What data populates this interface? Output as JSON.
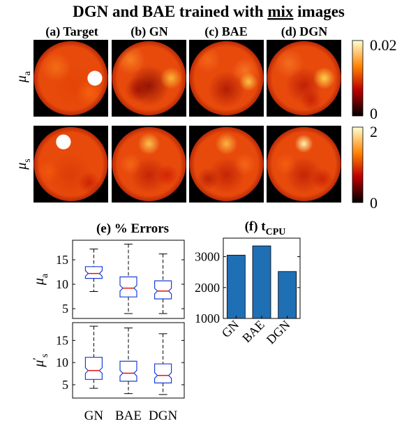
{
  "figure": {
    "title_prefix": "DGN and BAE trained with ",
    "title_underlined": "mix",
    "title_suffix": " images"
  },
  "panels": {
    "columns": [
      "(a) Target",
      "(b) GN",
      "(c) BAE",
      "(d) DGN"
    ],
    "rows": [
      {
        "label_main": "μ",
        "label_sub": "a"
      },
      {
        "label_main": "μ",
        "label_sub": "s"
      }
    ],
    "colorbars": [
      {
        "max_label": "0.02",
        "min_label": "0"
      },
      {
        "max_label": "2",
        "min_label": "0"
      }
    ]
  },
  "chart_data": [
    {
      "type": "box",
      "title": "(e) % Errors",
      "categories": [
        "GN",
        "BAE",
        "DGN"
      ],
      "panels": [
        {
          "ylabel_main": "μ",
          "ylabel_sub": "a",
          "ylabel_prime": "",
          "ylim": [
            3,
            19
          ],
          "yticks": [
            "5",
            "10",
            "15"
          ],
          "boxes": [
            {
              "category": "GN",
              "min": 8.5,
              "q1": 11.2,
              "median": 12.2,
              "q3": 13.6,
              "max": 17.2
            },
            {
              "category": "BAE",
              "min": 4.0,
              "q1": 7.4,
              "median": 9.2,
              "q3": 11.5,
              "max": 18.2
            },
            {
              "category": "DGN",
              "min": 4.0,
              "q1": 7.0,
              "median": 8.6,
              "q3": 10.7,
              "max": 16.2
            }
          ]
        },
        {
          "ylabel_main": "μ",
          "ylabel_sub": "s",
          "ylabel_prime": "′",
          "ylim": [
            2,
            19
          ],
          "yticks": [
            "5",
            "10",
            "15"
          ],
          "boxes": [
            {
              "category": "GN",
              "min": 4.2,
              "q1": 6.2,
              "median": 8.2,
              "q3": 11.2,
              "max": 18.2
            },
            {
              "category": "BAE",
              "min": 3.0,
              "q1": 5.8,
              "median": 7.6,
              "q3": 10.3,
              "max": 17.8
            },
            {
              "category": "DGN",
              "min": 2.8,
              "q1": 5.4,
              "median": 7.1,
              "q3": 9.7,
              "max": 16.5
            }
          ]
        }
      ]
    },
    {
      "type": "bar",
      "title_main": "(f) t",
      "title_sub": "CPU",
      "categories": [
        "GN",
        "BAE",
        "DGN"
      ],
      "values": [
        3050,
        3350,
        2520
      ],
      "ylim": [
        1000,
        3600
      ],
      "yticks": [
        "1000",
        "2000",
        "3000"
      ],
      "color": "#1f6fb4"
    }
  ]
}
